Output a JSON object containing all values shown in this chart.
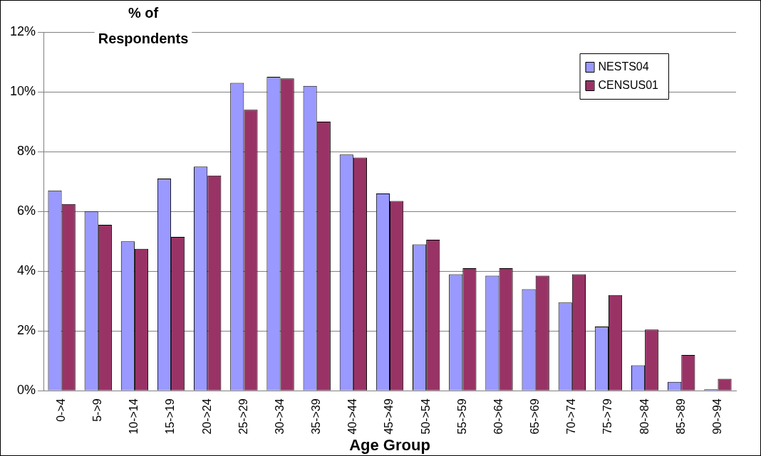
{
  "chart_data": {
    "type": "bar",
    "xlabel": "Age Group",
    "ylabel": "% of Respondents",
    "categories": [
      "0->4",
      "5->9",
      "10->14",
      "15->19",
      "20->24",
      "25->29",
      "30->34",
      "35->39",
      "40->44",
      "45->49",
      "50->54",
      "55->59",
      "60->64",
      "65->69",
      "70->74",
      "75->79",
      "80->84",
      "85->89",
      "90->94"
    ],
    "series": [
      {
        "name": "NESTS04",
        "color": "#9999ff",
        "values": [
          6.7,
          6.0,
          5.0,
          7.1,
          7.5,
          10.3,
          10.5,
          10.2,
          7.9,
          6.6,
          4.9,
          3.9,
          3.85,
          3.4,
          2.95,
          2.15,
          0.85,
          0.3,
          0.05
        ]
      },
      {
        "name": "CENSUS01",
        "color": "#993366",
        "values": [
          6.25,
          5.55,
          4.75,
          5.15,
          7.2,
          9.4,
          10.45,
          9.0,
          7.8,
          6.35,
          5.05,
          4.1,
          4.1,
          3.85,
          3.9,
          3.2,
          2.05,
          1.2,
          0.4
        ]
      }
    ],
    "ylim": [
      0,
      12
    ],
    "yticks": [
      {
        "value": 0,
        "label": "0%"
      },
      {
        "value": 2,
        "label": "2%"
      },
      {
        "value": 4,
        "label": "4%"
      },
      {
        "value": 6,
        "label": "6%"
      },
      {
        "value": 8,
        "label": "8%"
      },
      {
        "value": 10,
        "label": "10%"
      },
      {
        "value": 12,
        "label": "12%"
      }
    ],
    "grid": "y",
    "legend": "top right"
  }
}
